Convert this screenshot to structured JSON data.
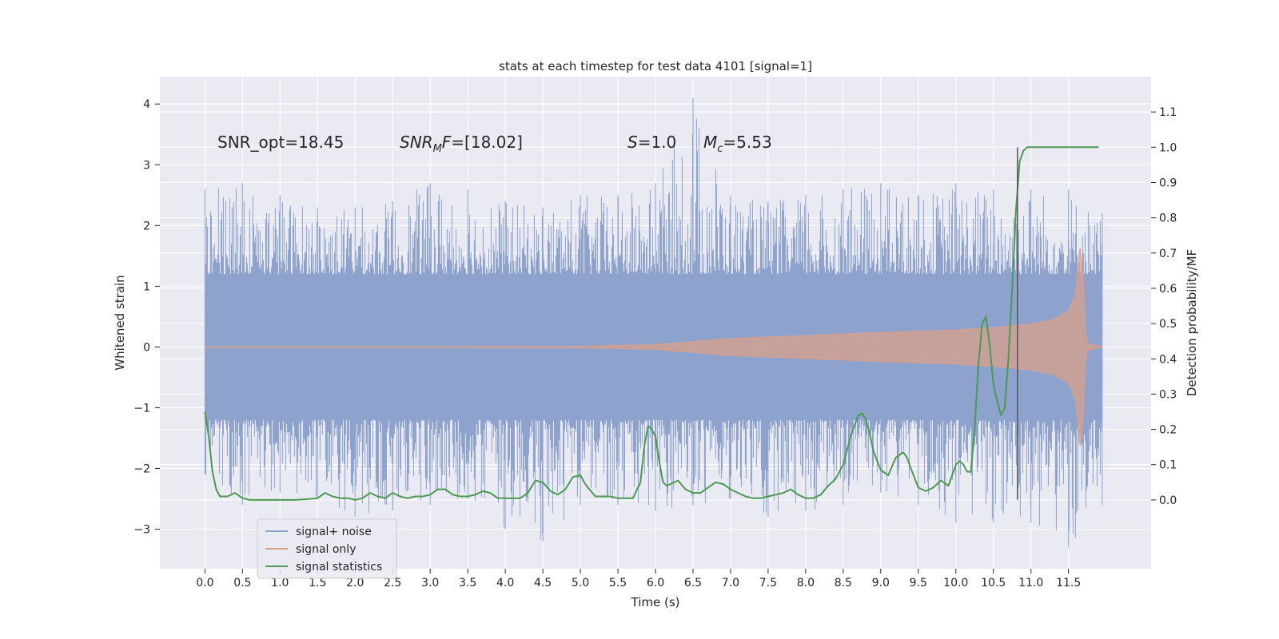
{
  "chart_data": {
    "type": "line",
    "title": "stats at each timestep for test data 4101 [signal=1]",
    "xlabel": "Time (s)",
    "ylabel_left": "Whitened strain",
    "ylabel_right": "Detection probability/MF",
    "xlim": [
      -0.6,
      12.6
    ],
    "ylim_left": [
      -3.65,
      4.45
    ],
    "ylim_right": [
      -0.195,
      1.2
    ],
    "x_ticks": [
      0.0,
      0.5,
      1.0,
      1.5,
      2.0,
      2.5,
      3.0,
      3.5,
      4.0,
      4.5,
      5.0,
      5.5,
      6.0,
      6.5,
      7.0,
      7.5,
      8.0,
      8.5,
      9.0,
      9.5,
      10.0,
      10.5,
      11.0,
      11.5
    ],
    "x_tick_labels": [
      "0.0",
      "0.5",
      "1.0",
      "1.5",
      "2.0",
      "2.5",
      "3.0",
      "3.5",
      "4.0",
      "4.5",
      "5.0",
      "5.5",
      "6.0",
      "6.5",
      "7.0",
      "7.5",
      "8.0",
      "8.5",
      "9.0",
      "9.5",
      "10.0",
      "10.5",
      "11.0",
      "11.5"
    ],
    "y_left_ticks": [
      -3,
      -2,
      -1,
      0,
      1,
      2,
      3,
      4
    ],
    "y_left_tick_labels": [
      "−3",
      "−2",
      "−1",
      "0",
      "1",
      "2",
      "3",
      "4"
    ],
    "y_right_ticks": [
      0.0,
      0.1,
      0.2,
      0.3,
      0.4,
      0.5,
      0.6,
      0.7,
      0.8,
      0.9,
      1.0,
      1.1
    ],
    "y_right_tick_labels": [
      "0.0",
      "0.1",
      "0.2",
      "0.3",
      "0.4",
      "0.5",
      "0.6",
      "0.7",
      "0.8",
      "0.9",
      "1.0",
      "1.1"
    ],
    "colors": {
      "noise": "#8da2cc",
      "signal": "#d9a08c",
      "stats": "#4a9a52",
      "vline": "#555555",
      "axes_bg": "#eaeaf2",
      "grid": "#ffffff"
    },
    "annotations": [
      {
        "id": "snr-opt",
        "parts": [
          {
            "t": "SNR_opt=18.45",
            "style": "normal"
          }
        ]
      },
      {
        "id": "snr-mf",
        "parts": [
          {
            "t": "SNR",
            "style": "italic"
          },
          {
            "t": "M",
            "style": "italic-sub"
          },
          {
            "t": "F",
            "style": "italic"
          },
          {
            "t": "=[18.02]",
            "style": "normal"
          }
        ]
      },
      {
        "id": "s-val",
        "parts": [
          {
            "t": "S",
            "style": "italic"
          },
          {
            "t": "=1.0",
            "style": "normal"
          }
        ]
      },
      {
        "id": "mc-val",
        "parts": [
          {
            "t": "M",
            "style": "italic"
          },
          {
            "t": "c",
            "style": "italic-sub"
          },
          {
            "t": "=5.53",
            "style": "normal"
          }
        ]
      }
    ],
    "vline_x": 10.82,
    "vline_range_right": [
      0.0,
      1.0
    ],
    "noise_envelope": {
      "x": [
        0.0,
        0.5,
        1.0,
        1.5,
        2.0,
        2.5,
        3.0,
        3.5,
        4.0,
        4.5,
        5.0,
        5.5,
        6.0,
        6.5,
        7.0,
        7.5,
        8.0,
        8.5,
        9.0,
        9.5,
        10.0,
        10.5,
        11.0,
        11.5,
        11.95
      ],
      "upper": [
        2.6,
        2.7,
        2.5,
        2.3,
        2.3,
        2.4,
        2.7,
        2.6,
        2.4,
        2.3,
        2.5,
        2.5,
        2.7,
        4.1,
        2.5,
        2.4,
        2.5,
        2.6,
        2.7,
        2.5,
        2.7,
        2.6,
        2.6,
        2.6,
        2.2
      ],
      "lower": [
        -2.1,
        -2.6,
        -2.4,
        -2.5,
        -2.8,
        -2.7,
        -2.6,
        -2.5,
        -3.0,
        -3.2,
        -2.6,
        -2.6,
        -2.7,
        -2.6,
        -2.5,
        -2.8,
        -2.7,
        -2.6,
        -2.4,
        -2.6,
        -2.9,
        -2.9,
        -2.9,
        -3.3,
        -2.6
      ],
      "core": 1.0
    },
    "signal_envelope": {
      "x": [
        0.0,
        3.0,
        5.0,
        6.0,
        7.0,
        8.0,
        9.0,
        10.0,
        10.5,
        11.0,
        11.3,
        11.5,
        11.6,
        11.65,
        11.7,
        11.72,
        11.75,
        11.8,
        11.95
      ],
      "amp": [
        0.005,
        0.005,
        0.01,
        0.04,
        0.14,
        0.19,
        0.24,
        0.28,
        0.32,
        0.38,
        0.45,
        0.6,
        0.9,
        1.7,
        1.1,
        0.3,
        0.06,
        0.04,
        0.01
      ]
    },
    "series_stats": {
      "name": "signal statistics",
      "axis": "right",
      "x": [
        0.0,
        0.05,
        0.1,
        0.15,
        0.2,
        0.3,
        0.4,
        0.5,
        0.6,
        0.8,
        1.0,
        1.2,
        1.4,
        1.5,
        1.6,
        1.7,
        1.8,
        1.9,
        2.0,
        2.1,
        2.2,
        2.3,
        2.4,
        2.5,
        2.6,
        2.7,
        2.8,
        2.9,
        3.0,
        3.1,
        3.2,
        3.3,
        3.4,
        3.5,
        3.6,
        3.7,
        3.8,
        3.9,
        4.0,
        4.1,
        4.2,
        4.3,
        4.4,
        4.5,
        4.6,
        4.7,
        4.8,
        4.9,
        5.0,
        5.05,
        5.1,
        5.2,
        5.3,
        5.4,
        5.5,
        5.6,
        5.7,
        5.8,
        5.85,
        5.9,
        5.95,
        6.0,
        6.05,
        6.1,
        6.15,
        6.2,
        6.3,
        6.4,
        6.5,
        6.6,
        6.7,
        6.8,
        6.9,
        7.0,
        7.1,
        7.2,
        7.3,
        7.4,
        7.5,
        7.6,
        7.7,
        7.8,
        7.9,
        8.0,
        8.1,
        8.2,
        8.3,
        8.4,
        8.5,
        8.6,
        8.7,
        8.75,
        8.8,
        8.85,
        8.9,
        9.0,
        9.1,
        9.2,
        9.3,
        9.35,
        9.4,
        9.5,
        9.6,
        9.7,
        9.8,
        9.9,
        10.0,
        10.05,
        10.1,
        10.15,
        10.2,
        10.25,
        10.3,
        10.35,
        10.4,
        10.45,
        10.5,
        10.55,
        10.6,
        10.65,
        10.7,
        10.75,
        10.8,
        10.85,
        10.9,
        10.95,
        11.0,
        11.05,
        11.1,
        11.2,
        11.4,
        11.6,
        11.8,
        11.9
      ],
      "values": [
        0.25,
        0.18,
        0.08,
        0.03,
        0.01,
        0.01,
        0.02,
        0.005,
        0.0,
        0.0,
        0.0,
        0.0,
        0.003,
        0.005,
        0.02,
        0.01,
        0.005,
        0.005,
        0.0,
        0.005,
        0.02,
        0.01,
        0.005,
        0.02,
        0.01,
        0.005,
        0.01,
        0.01,
        0.015,
        0.03,
        0.03,
        0.015,
        0.01,
        0.01,
        0.015,
        0.025,
        0.02,
        0.005,
        0.005,
        0.005,
        0.005,
        0.02,
        0.055,
        0.05,
        0.025,
        0.015,
        0.03,
        0.065,
        0.07,
        0.05,
        0.035,
        0.01,
        0.01,
        0.01,
        0.005,
        0.005,
        0.005,
        0.05,
        0.15,
        0.21,
        0.2,
        0.18,
        0.11,
        0.05,
        0.04,
        0.045,
        0.055,
        0.03,
        0.02,
        0.02,
        0.035,
        0.05,
        0.045,
        0.03,
        0.02,
        0.01,
        0.005,
        0.005,
        0.01,
        0.015,
        0.02,
        0.03,
        0.015,
        0.005,
        0.005,
        0.015,
        0.04,
        0.06,
        0.1,
        0.18,
        0.24,
        0.245,
        0.23,
        0.19,
        0.14,
        0.085,
        0.07,
        0.12,
        0.135,
        0.12,
        0.09,
        0.035,
        0.025,
        0.035,
        0.055,
        0.04,
        0.1,
        0.11,
        0.1,
        0.08,
        0.08,
        0.2,
        0.38,
        0.5,
        0.52,
        0.44,
        0.33,
        0.28,
        0.24,
        0.26,
        0.4,
        0.6,
        0.82,
        0.96,
        0.99,
        1.0,
        1.0,
        1.0,
        1.0,
        1.0,
        1.0,
        1.0,
        1.0,
        1.0
      ]
    },
    "legend": {
      "position": "lower-left",
      "entries": [
        {
          "label": "signal+ noise",
          "color_key": "noise"
        },
        {
          "label": "signal only",
          "color_key": "signal"
        },
        {
          "label": "signal statistics",
          "color_key": "stats"
        }
      ]
    },
    "grid": true
  }
}
